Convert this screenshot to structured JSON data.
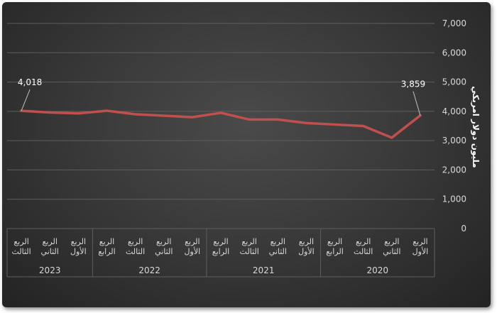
{
  "chart_data": {
    "type": "line",
    "ylabel": "مليون دولار امريكي",
    "ylim": [
      0,
      7000
    ],
    "yticks": [
      "0",
      "1,000",
      "2,000",
      "3,000",
      "4,000",
      "5,000",
      "6,000",
      "7,000"
    ],
    "grid": true,
    "categories": [
      {
        "quarter": "الربع الثالث",
        "year": "2023"
      },
      {
        "quarter": "الربع الثاني",
        "year": "2023"
      },
      {
        "quarter": "الربع الأول",
        "year": "2023"
      },
      {
        "quarter": "الربع الرابع",
        "year": "2022"
      },
      {
        "quarter": "الربع الثالث",
        "year": "2022"
      },
      {
        "quarter": "الربع الثاني",
        "year": "2022"
      },
      {
        "quarter": "الربع الأول",
        "year": "2022"
      },
      {
        "quarter": "الربع الرابع",
        "year": "2021"
      },
      {
        "quarter": "الربع الثالث",
        "year": "2021"
      },
      {
        "quarter": "الربع الثاني",
        "year": "2021"
      },
      {
        "quarter": "الربع الأول",
        "year": "2021"
      },
      {
        "quarter": "الربع الرابع",
        "year": "2020"
      },
      {
        "quarter": "الربع الثالث",
        "year": "2020"
      },
      {
        "quarter": "الربع الثاني",
        "year": "2020"
      },
      {
        "quarter": "الربع الأول",
        "year": "2020"
      }
    ],
    "year_groups": [
      "2023",
      "2022",
      "2021",
      "2020"
    ],
    "series": [
      {
        "values": [
          4018,
          3960,
          3930,
          4020,
          3900,
          3850,
          3800,
          3950,
          3720,
          3720,
          3600,
          3550,
          3500,
          3100,
          3859
        ]
      }
    ],
    "data_labels": [
      {
        "index": 0,
        "text": "4,018"
      },
      {
        "index": 14,
        "text": "3,859"
      }
    ],
    "colors": {
      "line": "#c0504d",
      "grid": "#5e5e5e",
      "text": "#d9d9d9"
    }
  }
}
